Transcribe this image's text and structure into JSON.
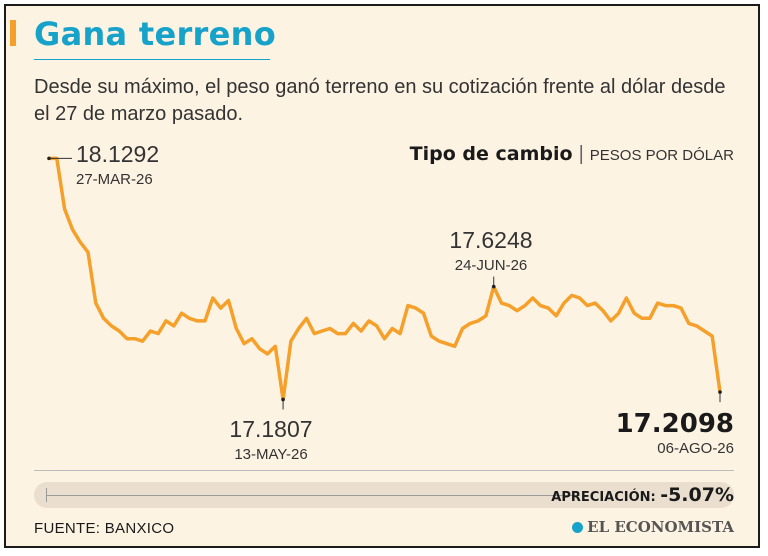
{
  "header": {
    "title": "Gana terreno",
    "subtitle": "Desde su máximo, el peso ganó terreno en su cotización frente al dólar desde el 27 de marzo pasado."
  },
  "chart_title": {
    "bold": "Tipo de cambio",
    "separator": "|",
    "unit": "PESOS POR DÓLAR"
  },
  "annotations": [
    {
      "value": "18.1292",
      "date": "27-MAR-26"
    },
    {
      "value": "17.1807",
      "date": "13-MAY-26"
    },
    {
      "value": "17.6248",
      "date": "24-JUN-26"
    },
    {
      "value": "17.2098",
      "date": "06-AGO-26"
    }
  ],
  "footer": {
    "appreciation_label": "APRECIACIÓN:",
    "appreciation_value": "-5.07%",
    "source": "FUENTE: BANXICO",
    "logo": "EL ECONOMISTA"
  },
  "colors": {
    "line": "#f5a02a",
    "title": "#17a3c9",
    "background": "#fdf3e3"
  },
  "chart_data": {
    "type": "line",
    "x_start": "27-MAR-26",
    "x_end": "06-AGO-26",
    "ylim": [
      17.1,
      18.17
    ],
    "grid": false,
    "values": [
      18.1292,
      18.129,
      17.93,
      17.85,
      17.8,
      17.76,
      17.56,
      17.5,
      17.47,
      17.45,
      17.42,
      17.42,
      17.41,
      17.45,
      17.44,
      17.49,
      17.47,
      17.52,
      17.5,
      17.49,
      17.49,
      17.58,
      17.54,
      17.57,
      17.46,
      17.4,
      17.42,
      17.38,
      17.36,
      17.39,
      17.1807,
      17.41,
      17.46,
      17.5,
      17.44,
      17.45,
      17.46,
      17.44,
      17.44,
      17.48,
      17.45,
      17.49,
      17.47,
      17.42,
      17.46,
      17.44,
      17.55,
      17.54,
      17.52,
      17.43,
      17.41,
      17.4,
      17.39,
      17.46,
      17.48,
      17.49,
      17.51,
      17.6248,
      17.56,
      17.55,
      17.53,
      17.55,
      17.58,
      17.55,
      17.54,
      17.51,
      17.56,
      17.59,
      17.58,
      17.55,
      17.56,
      17.53,
      17.49,
      17.52,
      17.58,
      17.52,
      17.5,
      17.5,
      17.56,
      17.55,
      17.55,
      17.54,
      17.48,
      17.47,
      17.45,
      17.43,
      17.2098
    ],
    "annotated_points": [
      {
        "label": "18.1292",
        "date": "27-MAR-26",
        "index": 0
      },
      {
        "label": "17.1807",
        "date": "13-MAY-26",
        "index": 30
      },
      {
        "label": "17.6248",
        "date": "24-JUN-26",
        "index": 57
      },
      {
        "label": "17.2098",
        "date": "06-AGO-26",
        "index": 86
      }
    ]
  }
}
